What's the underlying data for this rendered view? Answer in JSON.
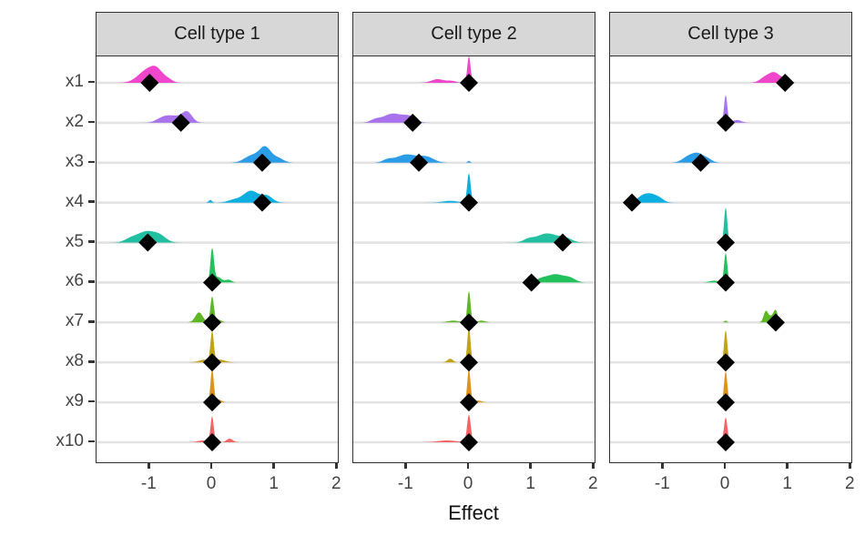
{
  "chart_data": {
    "type": "ridgeline-density",
    "title": "",
    "xlabel": "Effect",
    "x_ticks": [
      -1,
      0,
      1,
      2
    ],
    "x_range": [
      -1.85,
      2.01
    ],
    "categories": [
      "x1",
      "x2",
      "x3",
      "x4",
      "x5",
      "x6",
      "x7",
      "x8",
      "x9",
      "x10"
    ],
    "palette": [
      "#EE3CC8",
      "#A46BEC",
      "#2097E6",
      "#00ABDE",
      "#16BD9C",
      "#17BE53",
      "#55B318",
      "#BE9E0D",
      "#DE8C12",
      "#F35C5E"
    ],
    "legend": "none",
    "grid": "horizontal-only",
    "marker": "black-diamond",
    "density_components_format": "[mean, sd, peak_height_px]",
    "facets": [
      {
        "label": "Cell type 1",
        "rows": [
          {
            "category": "x1",
            "estimate": -1.0,
            "density": [
              [
                -1.05,
                0.14,
                13
              ],
              [
                -0.88,
                0.1,
                11
              ],
              [
                -0.7,
                0.07,
                3
              ]
            ]
          },
          {
            "category": "x2",
            "estimate": -0.5,
            "density": [
              [
                -0.62,
                0.13,
                7
              ],
              [
                -0.4,
                0.08,
                11
              ],
              [
                -0.8,
                0.1,
                4
              ]
            ]
          },
          {
            "category": "x3",
            "estimate": 0.8,
            "density": [
              [
                0.85,
                0.09,
                16
              ],
              [
                0.64,
                0.12,
                8
              ],
              [
                1.05,
                0.09,
                5
              ]
            ]
          },
          {
            "category": "x4",
            "estimate": 0.8,
            "density": [
              [
                0.62,
                0.12,
                13
              ],
              [
                0.88,
                0.09,
                7
              ],
              [
                0.35,
                0.1,
                3
              ],
              [
                -0.03,
                0.025,
                3
              ]
            ]
          },
          {
            "category": "x5",
            "estimate": -1.03,
            "density": [
              [
                -1.05,
                0.14,
                12
              ],
              [
                -0.83,
                0.1,
                6
              ],
              [
                -1.3,
                0.1,
                4
              ]
            ]
          },
          {
            "category": "x6",
            "estimate": 0.0,
            "density": [
              [
                0,
                0.028,
                36
              ],
              [
                0.09,
                0.06,
                6
              ],
              [
                0.26,
                0.05,
                3
              ]
            ]
          },
          {
            "category": "x7",
            "estimate": 0.0,
            "density": [
              [
                0,
                0.028,
                28
              ],
              [
                -0.21,
                0.06,
                11
              ],
              [
                0.1,
                0.05,
                3
              ]
            ]
          },
          {
            "category": "x8",
            "estimate": 0.0,
            "density": [
              [
                0,
                0.026,
                32
              ],
              [
                -0.12,
                0.09,
                3
              ],
              [
                0.12,
                0.09,
                3
              ]
            ]
          },
          {
            "category": "x9",
            "estimate": 0.0,
            "density": [
              [
                0,
                0.026,
                36
              ],
              [
                0.1,
                0.05,
                3
              ]
            ]
          },
          {
            "category": "x10",
            "estimate": 0.0,
            "density": [
              [
                0,
                0.026,
                28
              ],
              [
                0.28,
                0.05,
                4
              ],
              [
                -0.15,
                0.08,
                2
              ]
            ]
          }
        ]
      },
      {
        "label": "Cell type 2",
        "rows": [
          {
            "category": "x1",
            "estimate": 0.0,
            "density": [
              [
                0,
                0.026,
                29
              ],
              [
                -0.5,
                0.1,
                4
              ],
              [
                -0.28,
                0.07,
                2
              ]
            ]
          },
          {
            "category": "x2",
            "estimate": -0.9,
            "density": [
              [
                -1.22,
                0.15,
                10
              ],
              [
                -0.95,
                0.1,
                6
              ],
              [
                -1.5,
                0.08,
                3
              ]
            ]
          },
          {
            "category": "x3",
            "estimate": -0.8,
            "density": [
              [
                -1.0,
                0.16,
                9
              ],
              [
                -0.68,
                0.12,
                6
              ],
              [
                -1.3,
                0.08,
                3
              ],
              [
                0,
                0.02,
                2
              ]
            ]
          },
          {
            "category": "x4",
            "estimate": 0.0,
            "density": [
              [
                0,
                0.028,
                32
              ],
              [
                -0.3,
                0.12,
                2
              ]
            ]
          },
          {
            "category": "x5",
            "estimate": 1.5,
            "density": [
              [
                1.25,
                0.17,
                10
              ],
              [
                1.55,
                0.1,
                4
              ],
              [
                0.95,
                0.08,
                3
              ]
            ]
          },
          {
            "category": "x6",
            "estimate": 1.0,
            "density": [
              [
                1.38,
                0.14,
                9
              ],
              [
                1.62,
                0.09,
                4
              ],
              [
                1.15,
                0.08,
                3
              ]
            ]
          },
          {
            "category": "x7",
            "estimate": 0.0,
            "density": [
              [
                0,
                0.026,
                34
              ],
              [
                -0.25,
                0.09,
                2
              ],
              [
                0.2,
                0.06,
                2
              ]
            ]
          },
          {
            "category": "x8",
            "estimate": 0.0,
            "density": [
              [
                0,
                0.026,
                38
              ],
              [
                -0.3,
                0.045,
                4
              ]
            ]
          },
          {
            "category": "x9",
            "estimate": 0.0,
            "density": [
              [
                0,
                0.026,
                36
              ],
              [
                0.15,
                0.05,
                2
              ]
            ]
          },
          {
            "category": "x10",
            "estimate": 0.0,
            "density": [
              [
                0,
                0.03,
                30
              ],
              [
                -0.35,
                0.15,
                2
              ]
            ]
          }
        ]
      },
      {
        "label": "Cell type 3",
        "rows": [
          {
            "category": "x1",
            "estimate": 0.95,
            "density": [
              [
                0.78,
                0.09,
                11
              ],
              [
                0.62,
                0.08,
                5
              ],
              [
                0.95,
                0.06,
                3
              ]
            ]
          },
          {
            "category": "x2",
            "estimate": 0.0,
            "density": [
              [
                0,
                0.026,
                30
              ],
              [
                0.18,
                0.07,
                3
              ]
            ]
          },
          {
            "category": "x3",
            "estimate": -0.4,
            "density": [
              [
                -0.45,
                0.1,
                10
              ],
              [
                -0.62,
                0.09,
                5
              ],
              [
                -0.28,
                0.07,
                3
              ]
            ]
          },
          {
            "category": "x4",
            "estimate": -1.5,
            "density": [
              [
                -1.2,
                0.1,
                9
              ],
              [
                -1.35,
                0.08,
                5
              ],
              [
                -1.05,
                0.07,
                3
              ]
            ]
          },
          {
            "category": "x5",
            "estimate": 0.0,
            "density": [
              [
                0,
                0.026,
                38
              ]
            ]
          },
          {
            "category": "x6",
            "estimate": 0.0,
            "density": [
              [
                0,
                0.026,
                32
              ],
              [
                -0.18,
                0.08,
                2
              ]
            ]
          },
          {
            "category": "x7",
            "estimate": 0.8,
            "density": [
              [
                0.64,
                0.035,
                11
              ],
              [
                0.8,
                0.035,
                12
              ],
              [
                0.72,
                0.05,
                6
              ],
              [
                0,
                0.02,
                2
              ]
            ]
          },
          {
            "category": "x8",
            "estimate": 0.0,
            "density": [
              [
                0,
                0.026,
                35
              ]
            ]
          },
          {
            "category": "x9",
            "estimate": 0.0,
            "density": [
              [
                0,
                0.026,
                34
              ]
            ]
          },
          {
            "category": "x10",
            "estimate": 0.0,
            "density": [
              [
                0,
                0.028,
                27
              ]
            ]
          }
        ]
      }
    ]
  },
  "theme": {
    "strip_bg": "#D7D7D7",
    "strip_border": "#333333",
    "strip_text": "#1A1A1A",
    "panel_border": "#333333",
    "panel_bg": "#FFFFFF",
    "gridline": "#E3E3E3",
    "tick_color": "#333333",
    "axis_text": "#444444",
    "title_color": "#111111",
    "marker_color": "#000000",
    "ridge_opacity": 0.95
  }
}
